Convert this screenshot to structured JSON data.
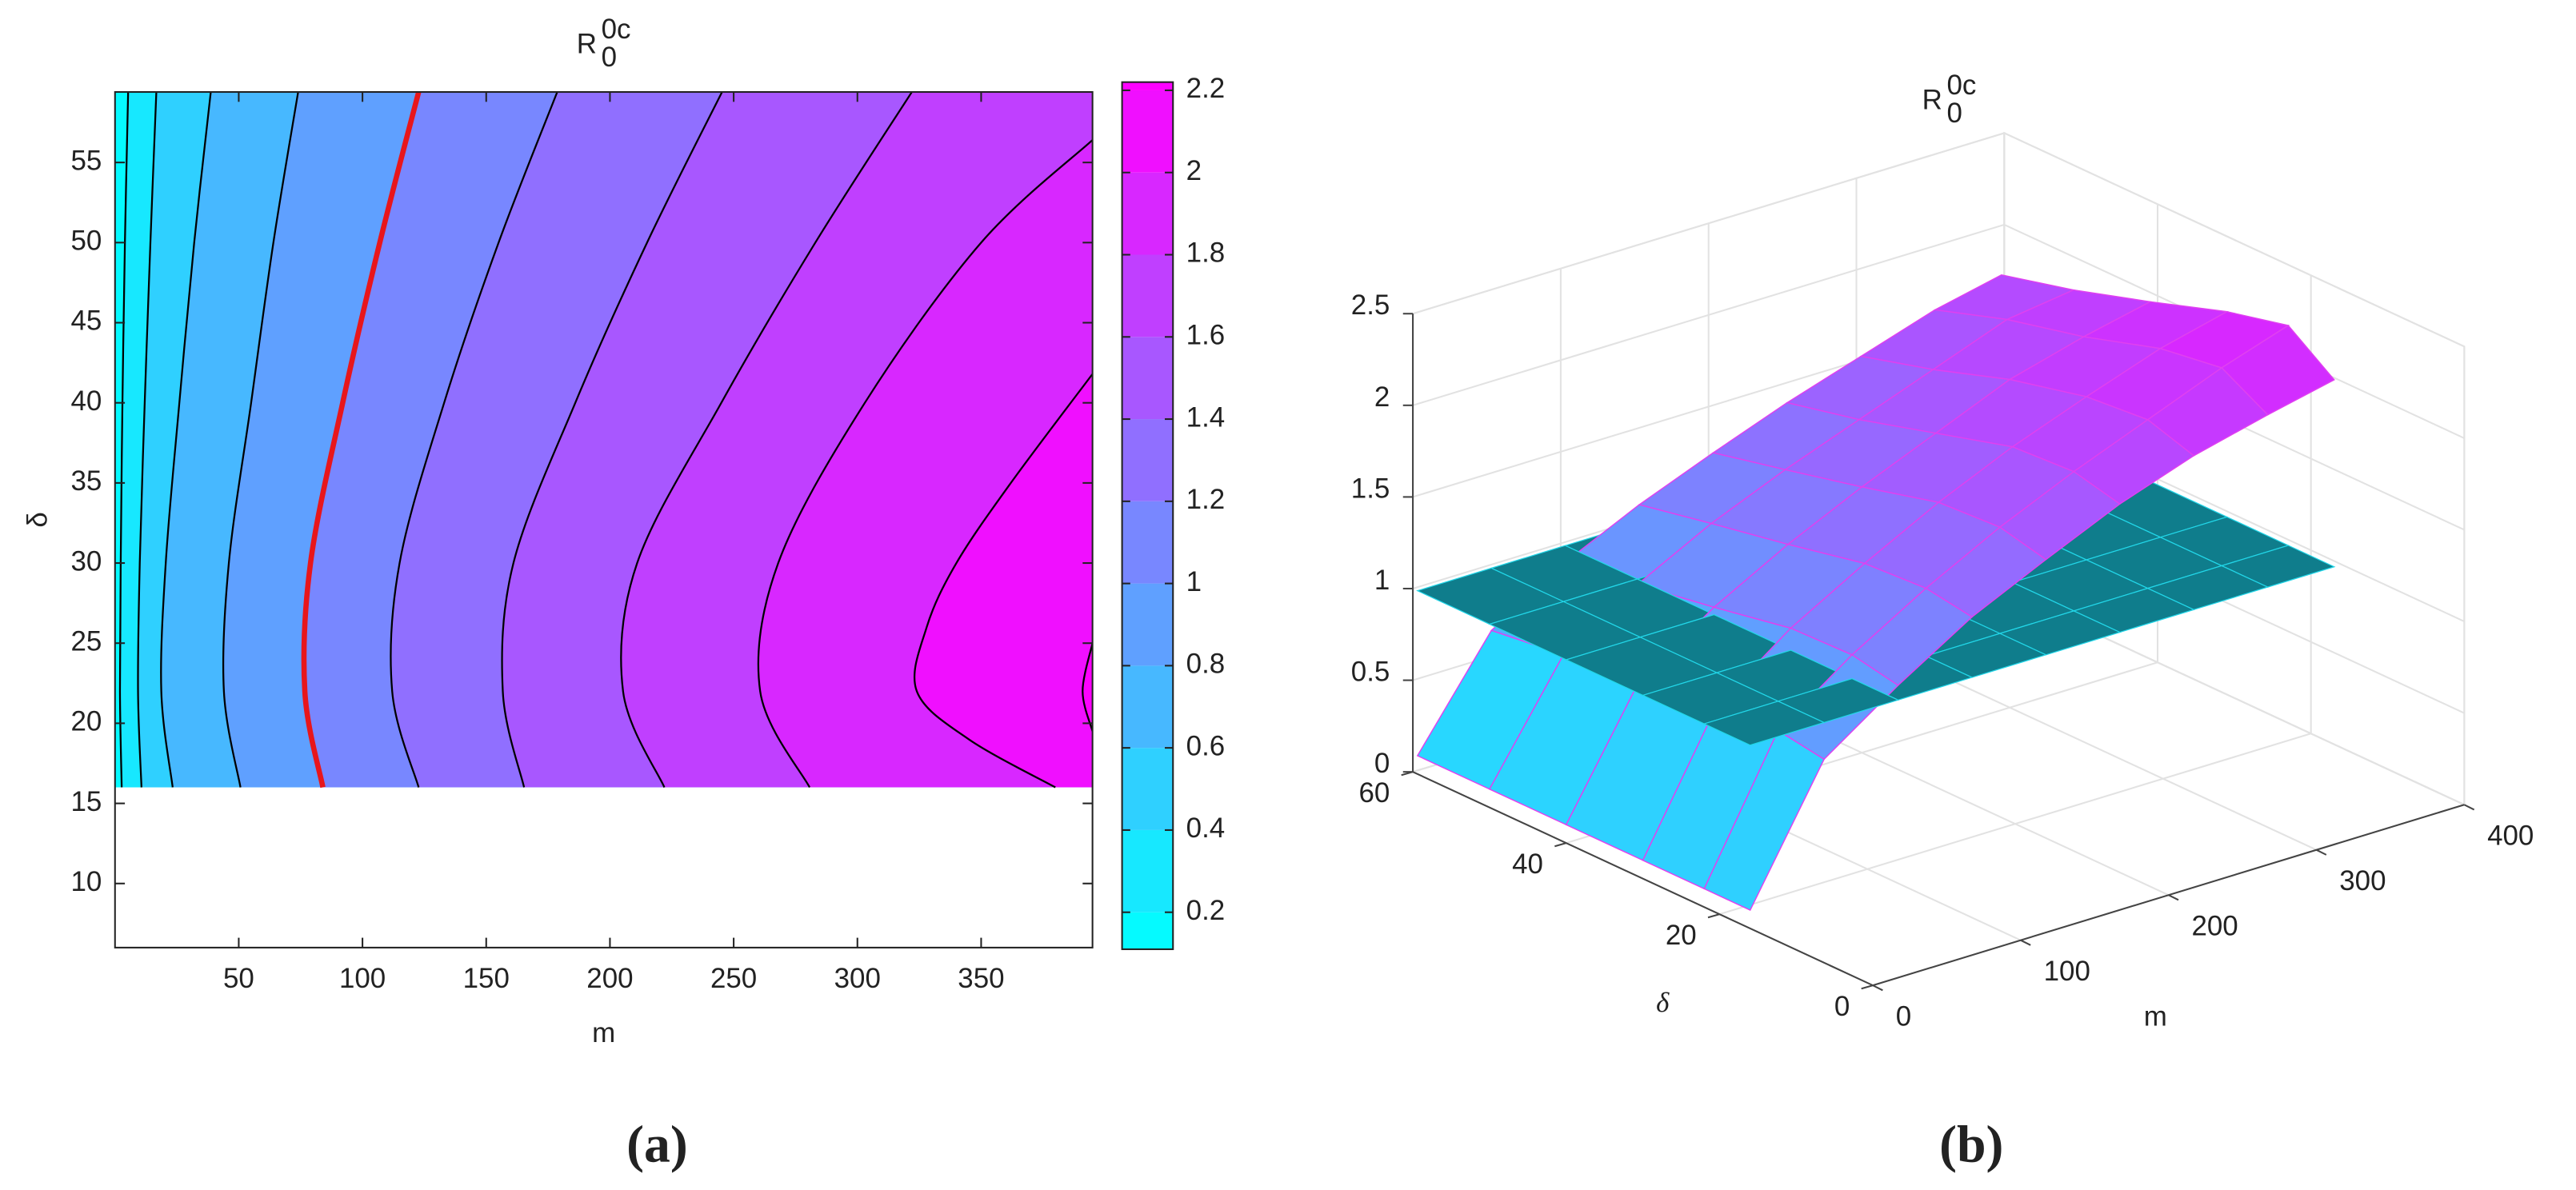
{
  "chart_data": [
    {
      "type": "contour",
      "title": {
        "base": "R",
        "sub": "0",
        "sup": "0c"
      },
      "x_label": "m",
      "y_label": "δ",
      "xlim": [
        0,
        395
      ],
      "ylim": [
        6,
        59.4
      ],
      "xticks": [
        50,
        100,
        150,
        200,
        250,
        300,
        350
      ],
      "yticks": [
        10,
        15,
        20,
        25,
        30,
        35,
        40,
        45,
        50,
        55
      ],
      "colormap": "cool",
      "clim": [
        0.11,
        2.22
      ],
      "cticks": [
        0.2,
        0.4,
        0.6,
        0.8,
        1,
        1.2,
        1.4,
        1.6,
        1.8,
        2,
        2.2
      ],
      "contours": [
        {
          "level": 0.2,
          "color": "#000000",
          "delta": [
            16,
            22,
            30,
            40,
            50,
            59.4
          ],
          "m": [
            2.7,
            2,
            2.3,
            3,
            4,
            5.3
          ]
        },
        {
          "level": 0.4,
          "color": "#000000",
          "delta": [
            16,
            22,
            30,
            40,
            50,
            59.4
          ],
          "m": [
            10.7,
            9.3,
            10,
            12,
            14.3,
            16.7
          ]
        },
        {
          "level": 0.6,
          "color": "#000000",
          "delta": [
            16,
            22,
            30,
            40,
            50,
            59.4
          ],
          "m": [
            23.3,
            18.7,
            20.5,
            26,
            32,
            38.7
          ]
        },
        {
          "level": 0.8,
          "color": "#000000",
          "delta": [
            16,
            22,
            30,
            40,
            50,
            59.4
          ],
          "m": [
            50.7,
            44,
            46,
            55,
            64,
            74
          ]
        },
        {
          "level": 1,
          "color": "#e8161b",
          "emphasis": true,
          "delta": [
            16,
            22,
            30,
            40,
            50,
            59.4
          ],
          "m": [
            84,
            76.7,
            79,
            92,
            107,
            122.7
          ]
        },
        {
          "level": 1.2,
          "color": "#000000",
          "delta": [
            16,
            22,
            30,
            40,
            50,
            59.4
          ],
          "m": [
            122.7,
            112,
            115,
            133,
            155,
            178.7
          ]
        },
        {
          "level": 1.4,
          "color": "#000000",
          "delta": [
            16,
            22,
            30,
            40,
            50,
            59.4
          ],
          "m": [
            165.3,
            156.7,
            161,
            186,
            215,
            245.3
          ]
        },
        {
          "level": 1.6,
          "color": "#000000",
          "delta": [
            16,
            22,
            30,
            40,
            50,
            59.4
          ],
          "m": [
            222,
            205.3,
            211,
            245,
            283,
            322
          ]
        },
        {
          "level": 1.8,
          "color": "#000000",
          "delta": [
            16,
            22,
            30,
            40,
            50,
            56.4
          ],
          "m": [
            280.7,
            260.7,
            268,
            303,
            350,
            395
          ]
        },
        {
          "level": 2,
          "color": "#000000",
          "delta": [
            16,
            19,
            22,
            26,
            30,
            35,
            41.8
          ],
          "m": [
            380,
            345,
            324,
            328,
            340,
            362,
            395
          ]
        },
        {
          "level": 2.2,
          "color": "#000000",
          "delta": [
            19.5,
            22,
            25
          ],
          "m": [
            395,
            391,
            395
          ]
        }
      ],
      "caption": "(a)"
    },
    {
      "type": "surface3d",
      "title": {
        "base": "R",
        "sub": "0",
        "sup": "0c"
      },
      "x_label": "m",
      "y_label": "δ",
      "xlim": [
        0,
        400
      ],
      "ylim": [
        0,
        60
      ],
      "zlim": [
        0,
        2.5
      ],
      "xticks": [
        0,
        100,
        200,
        300,
        400
      ],
      "yticks": [
        0,
        20,
        40,
        60
      ],
      "zticks": [
        0,
        0.5,
        1,
        1.5,
        2,
        2.5
      ],
      "colormap": "cool",
      "surface_edge_color": "#e040f0",
      "surface": {
        "m": [
          0,
          50,
          100,
          150,
          200,
          250,
          300,
          350,
          395
        ],
        "delta": [
          16,
          22,
          30,
          40,
          50,
          59.4
        ],
        "z": [
          [
            0.1,
            0.8,
            1.08,
            1.33,
            1.52,
            1.7,
            1.84,
            1.94,
            2.02
          ],
          [
            0.1,
            0.84,
            1.13,
            1.37,
            1.58,
            1.76,
            1.92,
            2.08,
            2.2
          ],
          [
            0.1,
            0.82,
            1.12,
            1.35,
            1.56,
            1.74,
            1.89,
            2.03,
            2.12
          ],
          [
            0.1,
            0.77,
            1.04,
            1.26,
            1.45,
            1.62,
            1.79,
            1.9,
            1.98
          ],
          [
            0.1,
            0.71,
            0.97,
            1.18,
            1.35,
            1.5,
            1.65,
            1.8,
            1.85
          ],
          [
            0.1,
            0.66,
            0.91,
            1.1,
            1.26,
            1.41,
            1.54,
            1.67,
            1.75
          ]
        ]
      },
      "plane": {
        "z": 1,
        "color": "#0f7d8c",
        "edge_color": "#22d6e8"
      },
      "caption": "(b)"
    }
  ]
}
